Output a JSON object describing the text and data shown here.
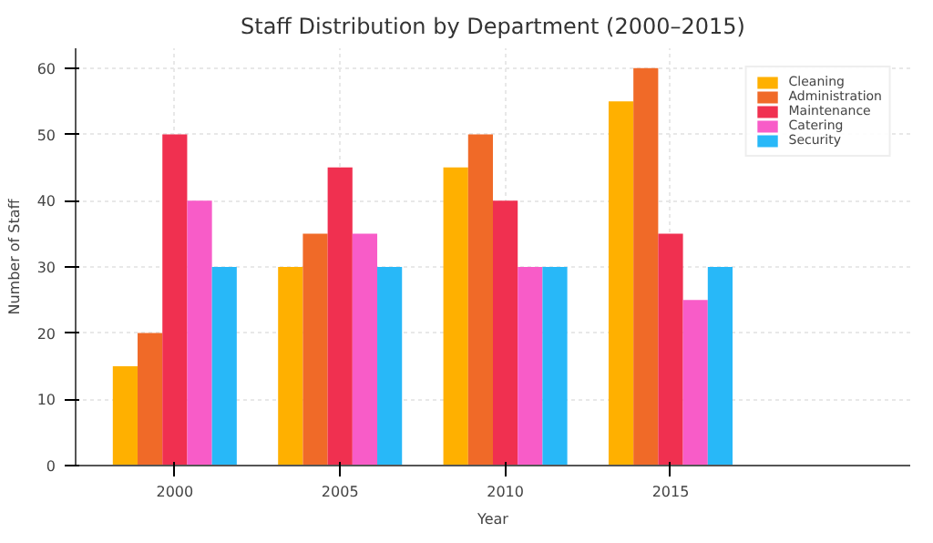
{
  "chart_data": {
    "type": "bar",
    "title": "Staff Distribution by Department (2000–2015)",
    "xlabel": "Year",
    "ylabel": "Number of Staff",
    "categories": [
      "2000",
      "2005",
      "2010",
      "2015"
    ],
    "series": [
      {
        "name": "Cleaning",
        "color": "#ffb000",
        "values": [
          15,
          30,
          45,
          55
        ]
      },
      {
        "name": "Administration",
        "color": "#f06a28",
        "values": [
          20,
          35,
          50,
          60
        ]
      },
      {
        "name": "Maintenance",
        "color": "#f03050",
        "values": [
          50,
          45,
          40,
          35
        ]
      },
      {
        "name": "Catering",
        "color": "#f85cc8",
        "values": [
          40,
          35,
          30,
          25
        ]
      },
      {
        "name": "Security",
        "color": "#28b8f8",
        "values": [
          30,
          30,
          30,
          30
        ]
      }
    ],
    "ylim": [
      0,
      63
    ],
    "yticks": [
      0,
      10,
      20,
      30,
      40,
      50,
      60
    ],
    "grid": true,
    "legend": "top right"
  }
}
